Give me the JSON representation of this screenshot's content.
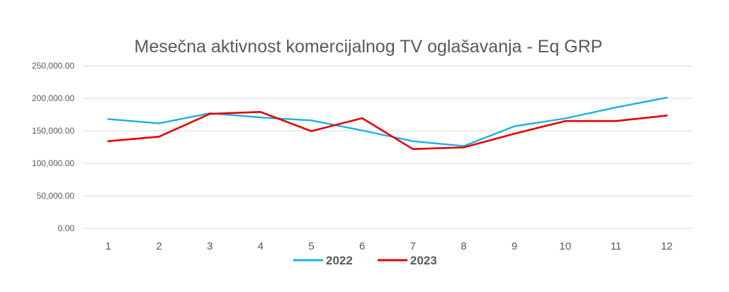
{
  "chart_data": {
    "type": "line",
    "title": "Mesečna aktivnost komercijalnog TV oglašavanja  - Eq GRP",
    "xlabel": "",
    "ylabel": "",
    "categories": [
      "1",
      "2",
      "3",
      "4",
      "5",
      "6",
      "7",
      "8",
      "9",
      "10",
      "11",
      "12"
    ],
    "ylim": [
      0,
      250000
    ],
    "yticks": [
      "0.00",
      "50,000.00",
      "100,000.00",
      "150,000.00",
      "200,000.00",
      "250,000.00"
    ],
    "ytick_values": [
      0,
      50000,
      100000,
      150000,
      200000,
      250000
    ],
    "grid": true,
    "legend": "bottom",
    "series": [
      {
        "name": "2022",
        "color": "#1ab0e6",
        "values": [
          168000,
          161500,
          177000,
          170500,
          166000,
          150500,
          134000,
          126500,
          157000,
          169000,
          186000,
          201000
        ]
      },
      {
        "name": "2023",
        "color": "#e60000",
        "values": [
          134000,
          141000,
          176000,
          179000,
          149500,
          169500,
          122000,
          124500,
          145500,
          165000,
          165000,
          173500
        ]
      }
    ]
  }
}
